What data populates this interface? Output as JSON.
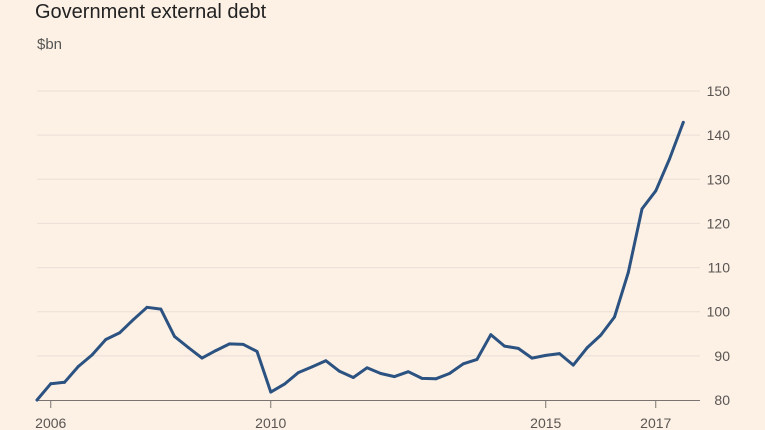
{
  "chart_data": {
    "type": "line",
    "title": "Government external debt",
    "ylabel": "$bn",
    "xlabel": "",
    "ylim": [
      80,
      150
    ],
    "xlim": [
      2005.75,
      2017.75
    ],
    "y_ticks": [
      80,
      90,
      100,
      110,
      120,
      130,
      140,
      150
    ],
    "x_ticks": [
      {
        "value": 2006,
        "label": "2006"
      },
      {
        "value": 2010,
        "label": "2010"
      },
      {
        "value": 2015,
        "label": "2015"
      },
      {
        "value": 2017,
        "label": "2017"
      }
    ],
    "grid": "horizontal",
    "colors": {
      "background": "#fdf1e6",
      "line": "#2b5280",
      "grid": "#eadfd5",
      "axis": "#7a7470"
    },
    "series": [
      {
        "x": [
          2005.75,
          2006.0,
          2006.25,
          2006.5,
          2006.75,
          2007.0,
          2007.25,
          2007.5,
          2007.75,
          2008.0,
          2008.25,
          2008.5,
          2008.75,
          2009.0,
          2009.25,
          2009.5,
          2009.75,
          2010.0,
          2010.25,
          2010.5,
          2010.75,
          2011.0,
          2011.25,
          2011.5,
          2011.75,
          2012.0,
          2012.25,
          2012.5,
          2012.75,
          2013.0,
          2013.25,
          2013.5,
          2013.75,
          2014.0,
          2014.25,
          2014.5,
          2014.75,
          2015.0,
          2015.25,
          2015.5,
          2015.75,
          2016.0,
          2016.25,
          2016.5,
          2016.75,
          2017.0,
          2017.25,
          2017.5
        ],
        "values": [
          80.0,
          83.7,
          84.0,
          87.6,
          90.2,
          93.7,
          95.2,
          98.2,
          101.0,
          100.6,
          94.4,
          91.9,
          89.5,
          91.2,
          92.7,
          92.6,
          91.0,
          81.8,
          83.6,
          86.2,
          87.5,
          88.9,
          86.5,
          85.1,
          87.3,
          86.0,
          85.3,
          86.4,
          84.9,
          84.8,
          86.0,
          88.2,
          89.2,
          94.8,
          92.2,
          91.7,
          89.5,
          90.1,
          90.5,
          87.9,
          91.8,
          94.7,
          98.8,
          108.9,
          123.3,
          127.4,
          134.6,
          142.9
        ]
      }
    ]
  }
}
